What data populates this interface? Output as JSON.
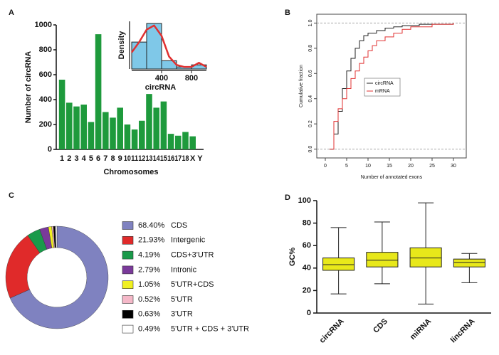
{
  "chart_data": [
    {
      "type": "bar",
      "panel_label": "A",
      "ylabel": "Number of circRNA",
      "xlabel": "Chromosomes",
      "categories": [
        "1",
        "2",
        "3",
        "4",
        "5",
        "6",
        "7",
        "8",
        "9",
        "10",
        "11",
        "12",
        "13",
        "14",
        "15",
        "16",
        "17",
        "18",
        "X",
        "Y"
      ],
      "values": [
        560,
        375,
        345,
        360,
        220,
        925,
        300,
        255,
        335,
        200,
        160,
        230,
        445,
        335,
        385,
        125,
        110,
        140,
        105,
        0
      ],
      "color": "#1e9a3c",
      "ylim": [
        0,
        1000
      ],
      "yticks": [
        0,
        200,
        400,
        600,
        800,
        1000
      ]
    },
    {
      "type": "histogram",
      "ylabel": "Density",
      "xlabel": "circRNA",
      "bins": [
        0,
        200,
        400,
        600,
        800,
        1000
      ],
      "counts": [
        0.0013,
        0.0022,
        0.0004,
        0.0001,
        0.0002
      ],
      "color": "#7fc8e8",
      "xlim": [
        0,
        1000
      ],
      "ylim": [
        0,
        0.0023
      ],
      "xticks": [
        400,
        800
      ],
      "density": {
        "color": "#e03030",
        "x": [
          0,
          100,
          200,
          300,
          400,
          500,
          600,
          700,
          800,
          900,
          1000
        ],
        "values": [
          0.0008,
          0.0013,
          0.0019,
          0.0021,
          0.0016,
          0.0006,
          0.0002,
          0.0001,
          0.0001,
          0.0003,
          0.0001
        ]
      }
    },
    {
      "type": "step",
      "panel_label": "B",
      "xlabel": "Number of annotated exons",
      "ylabel": "Cumulative fraction",
      "xlim": [
        -2,
        33
      ],
      "ylim": [
        -0.07,
        1.07
      ],
      "xticks": [
        0,
        5,
        10,
        15,
        20,
        25,
        30
      ],
      "yticks": [
        {
          "value": 0,
          "label": "0.0"
        },
        0.2,
        0.4,
        0.6,
        0.8,
        {
          "value": 1,
          "label": "1.0"
        }
      ],
      "reference_lines": [
        0,
        1
      ],
      "legend": "center-right",
      "series": [
        {
          "name": "circRNA",
          "color": "#222222",
          "x": [
            1,
            2,
            3,
            4,
            5,
            6,
            7,
            8,
            9,
            10,
            12,
            14,
            16,
            18,
            22,
            30
          ],
          "values": [
            0,
            0.12,
            0.3,
            0.48,
            0.62,
            0.72,
            0.8,
            0.86,
            0.9,
            0.92,
            0.94,
            0.96,
            0.97,
            0.98,
            0.99,
            1
          ]
        },
        {
          "name": "mRNA",
          "color": "#e03030",
          "x": [
            1,
            2,
            3,
            4,
            5,
            6,
            7,
            8,
            9,
            10,
            11,
            12,
            14,
            16,
            18,
            20,
            25,
            30
          ],
          "values": [
            0,
            0.22,
            0.32,
            0.4,
            0.48,
            0.56,
            0.62,
            0.68,
            0.73,
            0.78,
            0.82,
            0.86,
            0.89,
            0.92,
            0.95,
            0.97,
            0.99,
            1
          ]
        }
      ]
    },
    {
      "type": "donut",
      "panel_label": "C",
      "categories": [
        "CDS",
        "Intergenic",
        "CDS+3'UTR",
        "Intronic",
        "5'UTR+CDS",
        "5'UTR",
        "3'UTR",
        "5'UTR + CDS + 3'UTR"
      ],
      "values": [
        68.4,
        21.93,
        4.19,
        2.79,
        1.05,
        0.52,
        0.63,
        0.49
      ],
      "value_labels": [
        "68.40%",
        "21.93%",
        "4.19%",
        "2.79%",
        "1.05%",
        "0.52%",
        "0.63%",
        "0.49%"
      ],
      "colors": [
        "#7f82c0",
        "#e02a2a",
        "#1a9a4a",
        "#7a3a9a",
        "#f0f020",
        "#f5b8c8",
        "#000000",
        "#ffffff"
      ]
    },
    {
      "type": "box",
      "panel_label": "D",
      "ylabel": "GC%",
      "categories": [
        "circRNA",
        "CDS",
        "miRNA",
        "lincRNA"
      ],
      "min": [
        17,
        26,
        8,
        27
      ],
      "q1": [
        38,
        41,
        41,
        41
      ],
      "median": [
        43,
        47,
        49,
        45
      ],
      "q3": [
        49,
        54,
        58,
        48
      ],
      "max": [
        76,
        81,
        98,
        53
      ],
      "color": "#e8e81a",
      "ylim": [
        0,
        100
      ],
      "yticks": [
        0,
        20,
        40,
        60,
        80,
        100
      ]
    }
  ]
}
